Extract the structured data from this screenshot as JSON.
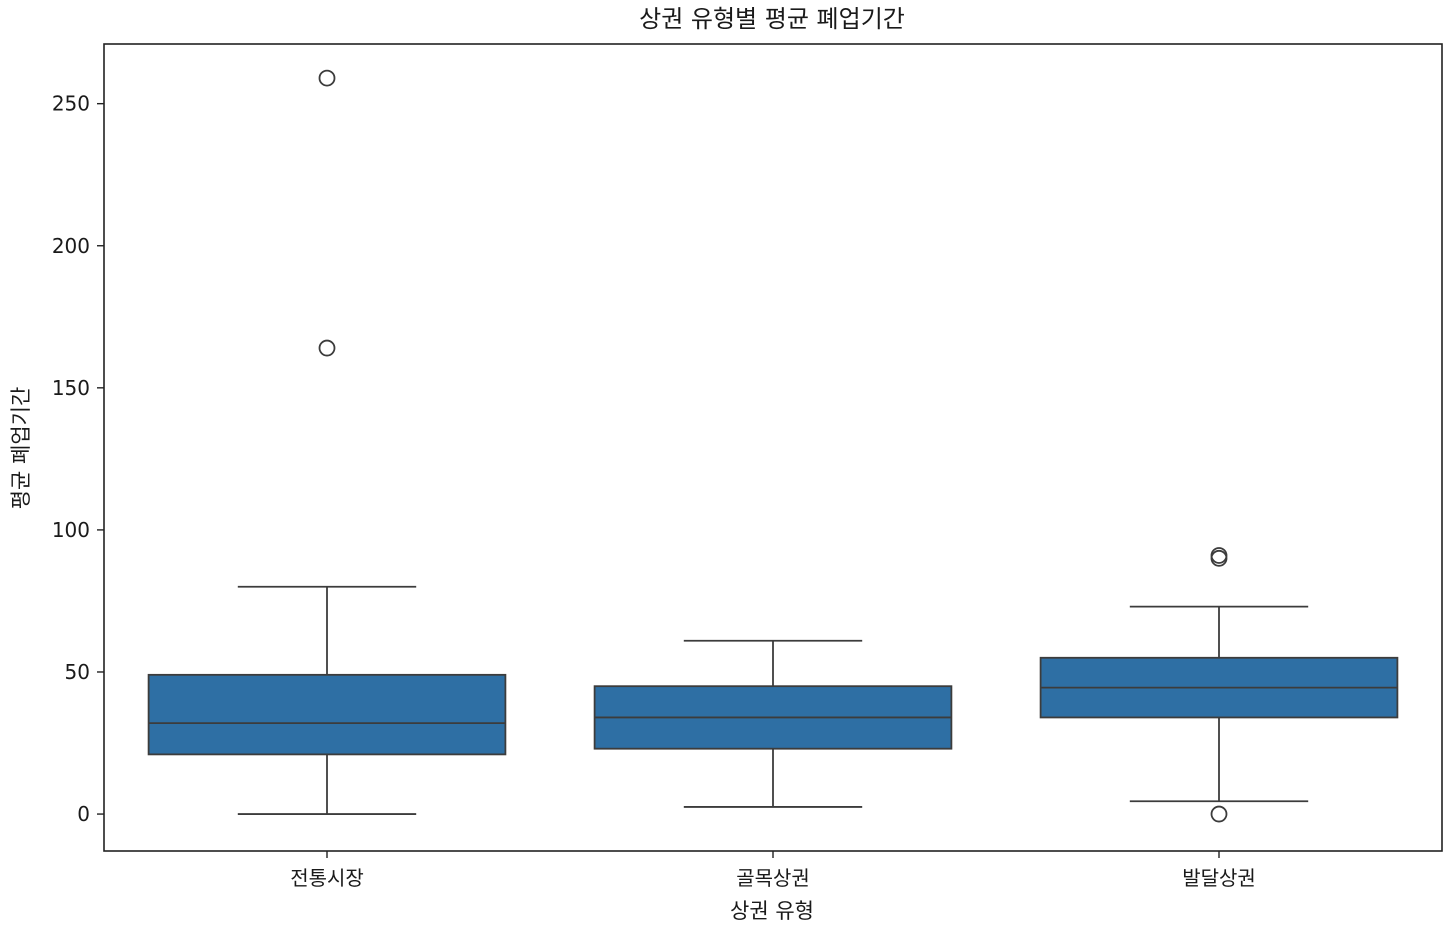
{
  "chart_data": {
    "type": "box",
    "title": "상권 유형별 평균 폐업기간",
    "xlabel": "상권 유형",
    "ylabel": "평균 폐업기간",
    "ylim": [
      -13,
      271
    ],
    "yticks": [
      0,
      50,
      100,
      150,
      200,
      250
    ],
    "grid": false,
    "legend": "none",
    "box_color": "#2e6fa4",
    "line_color": "#3c3c3c",
    "categories": [
      "전통시장",
      "골목상권",
      "발달상권"
    ],
    "boxes": [
      {
        "category": "전통시장",
        "whisker_low": 0,
        "q1": 21,
        "median": 32,
        "q3": 49,
        "whisker_high": 80,
        "outliers": [
          164,
          259
        ]
      },
      {
        "category": "골목상권",
        "whisker_low": 2.5,
        "q1": 23,
        "median": 34,
        "q3": 45,
        "whisker_high": 61,
        "outliers": []
      },
      {
        "category": "발달상권",
        "whisker_low": 4.5,
        "q1": 34,
        "median": 44.5,
        "q3": 55,
        "whisker_high": 73,
        "outliers": [
          0,
          90,
          91
        ]
      }
    ]
  }
}
